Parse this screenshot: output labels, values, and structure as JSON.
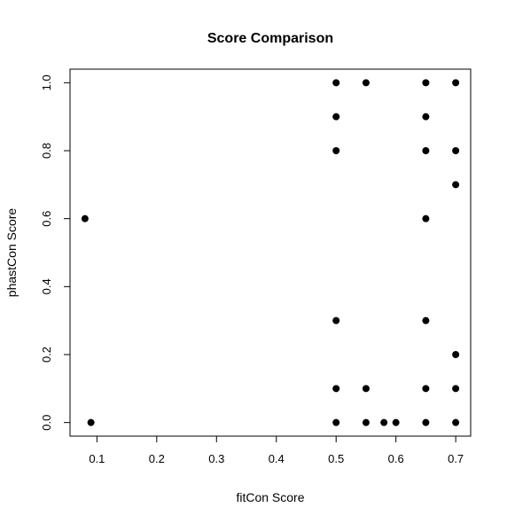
{
  "chart_data": {
    "type": "scatter",
    "title": "Score Comparison",
    "xlabel": "fitCon Score",
    "ylabel": "phastCon Score",
    "xlim": [
      0.055,
      0.725
    ],
    "ylim": [
      -0.04,
      1.04
    ],
    "xticks": [
      "0.1",
      "0.2",
      "0.3",
      "0.4",
      "0.5",
      "0.6",
      "0.7"
    ],
    "yticks": [
      "0.0",
      "0.2",
      "0.4",
      "0.6",
      "0.8",
      "1.0"
    ],
    "grid": false,
    "point_color": "#000000",
    "points": [
      {
        "x": 0.08,
        "y": 0.6
      },
      {
        "x": 0.09,
        "y": 0.0
      },
      {
        "x": 0.5,
        "y": 1.0
      },
      {
        "x": 0.5,
        "y": 0.9
      },
      {
        "x": 0.5,
        "y": 0.8
      },
      {
        "x": 0.5,
        "y": 0.3
      },
      {
        "x": 0.5,
        "y": 0.1
      },
      {
        "x": 0.5,
        "y": 0.0
      },
      {
        "x": 0.55,
        "y": 1.0
      },
      {
        "x": 0.55,
        "y": 0.1
      },
      {
        "x": 0.55,
        "y": 0.0
      },
      {
        "x": 0.58,
        "y": 0.0
      },
      {
        "x": 0.6,
        "y": 0.0
      },
      {
        "x": 0.65,
        "y": 1.0
      },
      {
        "x": 0.65,
        "y": 0.9
      },
      {
        "x": 0.65,
        "y": 0.8
      },
      {
        "x": 0.65,
        "y": 0.6
      },
      {
        "x": 0.65,
        "y": 0.3
      },
      {
        "x": 0.65,
        "y": 0.1
      },
      {
        "x": 0.65,
        "y": 0.0
      },
      {
        "x": 0.7,
        "y": 1.0
      },
      {
        "x": 0.7,
        "y": 0.8
      },
      {
        "x": 0.7,
        "y": 0.7
      },
      {
        "x": 0.7,
        "y": 0.2
      },
      {
        "x": 0.7,
        "y": 0.1
      },
      {
        "x": 0.7,
        "y": 0.0
      }
    ]
  }
}
